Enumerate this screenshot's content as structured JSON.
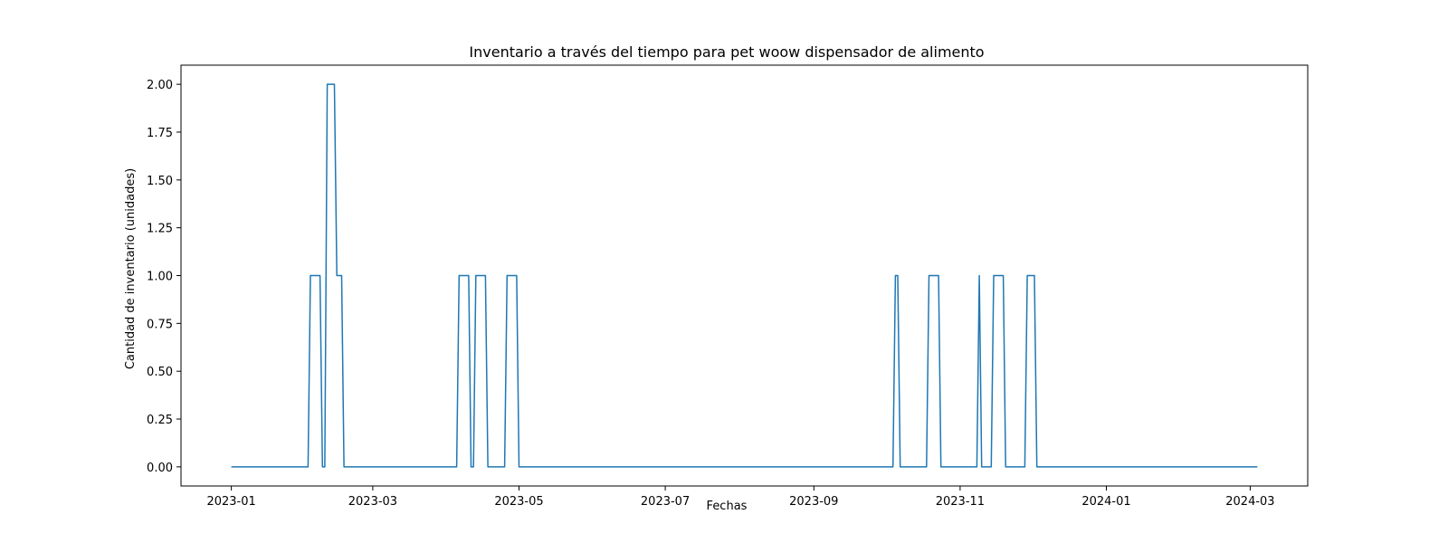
{
  "chart_data": {
    "type": "line",
    "title": "Inventario a través del tiempo para pet woow dispensador de alimento",
    "xlabel": "Fechas",
    "ylabel": "Cantidad de inventario (unidades)",
    "x_axis_type": "date",
    "xlim": [
      "2022-12-11",
      "2024-03-25"
    ],
    "ylim": [
      -0.1,
      2.1
    ],
    "x_ticks": [
      "2023-01",
      "2023-03",
      "2023-05",
      "2023-07",
      "2023-09",
      "2023-11",
      "2024-01",
      "2024-03"
    ],
    "y_ticks": [
      "0.00",
      "0.25",
      "0.50",
      "0.75",
      "1.00",
      "1.25",
      "1.50",
      "1.75",
      "2.00"
    ],
    "grid": false,
    "legend": "none",
    "color": "#1f77b4",
    "series": [
      {
        "x": [
          "2023-01-01",
          "2023-02-02",
          "2023-02-03",
          "2023-02-07",
          "2023-02-08",
          "2023-02-09",
          "2023-02-10",
          "2023-02-13",
          "2023-02-14",
          "2023-02-16",
          "2023-02-17",
          "2023-04-05",
          "2023-04-06",
          "2023-04-10",
          "2023-04-11",
          "2023-04-12",
          "2023-04-13",
          "2023-04-17",
          "2023-04-18",
          "2023-04-25",
          "2023-04-26",
          "2023-04-30",
          "2023-05-01",
          "2023-10-04",
          "2023-10-05",
          "2023-10-06",
          "2023-10-07",
          "2023-10-18",
          "2023-10-19",
          "2023-10-23",
          "2023-10-24",
          "2023-11-08",
          "2023-11-09",
          "2023-11-10",
          "2023-11-14",
          "2023-11-15",
          "2023-11-19",
          "2023-11-20",
          "2023-11-28",
          "2023-11-29",
          "2023-12-02",
          "2023-12-03",
          "2024-03-04"
        ],
        "y": [
          0,
          0,
          1,
          1,
          0,
          0,
          2,
          2,
          1,
          1,
          0,
          0,
          1,
          1,
          0,
          0,
          1,
          1,
          0,
          0,
          1,
          1,
          0,
          0,
          1,
          1,
          0,
          0,
          1,
          1,
          0,
          0,
          1,
          0,
          0,
          1,
          1,
          0,
          0,
          1,
          1,
          0,
          0
        ]
      }
    ]
  }
}
